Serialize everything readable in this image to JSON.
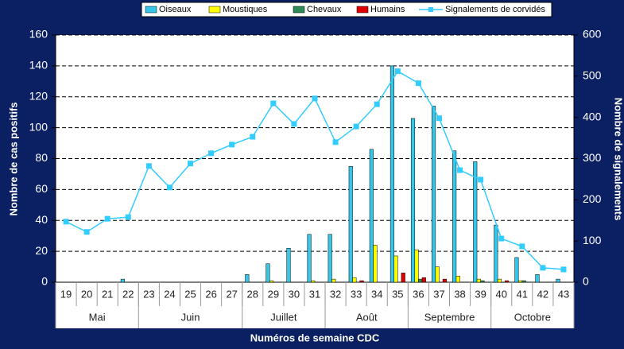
{
  "chart_data": {
    "type": "bar",
    "categories": [
      "19",
      "20",
      "21",
      "22",
      "23",
      "24",
      "25",
      "26",
      "27",
      "28",
      "29",
      "30",
      "31",
      "32",
      "33",
      "34",
      "35",
      "36",
      "37",
      "38",
      "39",
      "40",
      "41",
      "42",
      "43"
    ],
    "groups": [
      {
        "label": "Mai",
        "categories": [
          "19",
          "20",
          "21",
          "22"
        ]
      },
      {
        "label": "Juin",
        "categories": [
          "23",
          "24",
          "25",
          "26",
          "27"
        ]
      },
      {
        "label": "Juillet",
        "categories": [
          "28",
          "29",
          "30",
          "31"
        ]
      },
      {
        "label": "Août",
        "categories": [
          "32",
          "33",
          "34",
          "35"
        ]
      },
      {
        "label": "Septembre",
        "categories": [
          "36",
          "37",
          "38",
          "39"
        ]
      },
      {
        "label": "Octobre",
        "categories": [
          "40",
          "41",
          "42",
          "43"
        ]
      }
    ],
    "series": [
      {
        "name": "Oiseaux",
        "color": "#35c6e8",
        "values": [
          0,
          0,
          0,
          2,
          0,
          0,
          0,
          0,
          0,
          5,
          12,
          22,
          31,
          31,
          75,
          86,
          140,
          106,
          114,
          85,
          78,
          37,
          16,
          5,
          2
        ]
      },
      {
        "name": "Moustiques",
        "color": "#ffff00",
        "values": [
          0,
          0,
          0,
          0,
          0,
          0,
          0,
          0,
          0,
          0,
          1,
          0,
          1,
          2,
          3,
          24,
          17,
          21,
          10,
          4,
          2,
          2,
          1,
          0,
          0
        ]
      },
      {
        "name": "Chevaux",
        "color": "#2e8b57",
        "values": [
          0,
          0,
          0,
          0,
          0,
          0,
          0,
          0,
          0,
          0,
          0,
          0,
          0,
          0,
          0,
          0,
          0,
          2,
          0,
          0,
          1,
          0,
          1,
          0,
          0
        ]
      },
      {
        "name": "Humains",
        "color": "#e00000",
        "values": [
          0,
          0,
          0,
          0,
          0,
          0,
          0,
          0,
          0,
          0,
          0,
          0,
          0,
          0,
          1,
          0,
          6,
          3,
          2,
          0,
          0,
          1,
          0,
          0,
          0
        ]
      },
      {
        "name": "Signalements de corvidés",
        "type": "line",
        "axis": "y2",
        "color": "#33ccff",
        "values": [
          147,
          122,
          154,
          158,
          282,
          230,
          288,
          313,
          334,
          353,
          434,
          384,
          446,
          340,
          378,
          432,
          512,
          483,
          398,
          272,
          249,
          106,
          87,
          35,
          31
        ]
      }
    ],
    "ylabel": "Nombre de cas positifs",
    "y2label": "Nombre de signalements",
    "xlabel": "Numéros de semaine CDC",
    "ylim": [
      0,
      160
    ],
    "yticks": [
      0,
      20,
      40,
      60,
      80,
      100,
      120,
      140,
      160
    ],
    "y2lim": [
      0,
      600
    ],
    "y2ticks": [
      0,
      100,
      200,
      300,
      400,
      500,
      600
    ],
    "grid": true,
    "legend": "top"
  }
}
